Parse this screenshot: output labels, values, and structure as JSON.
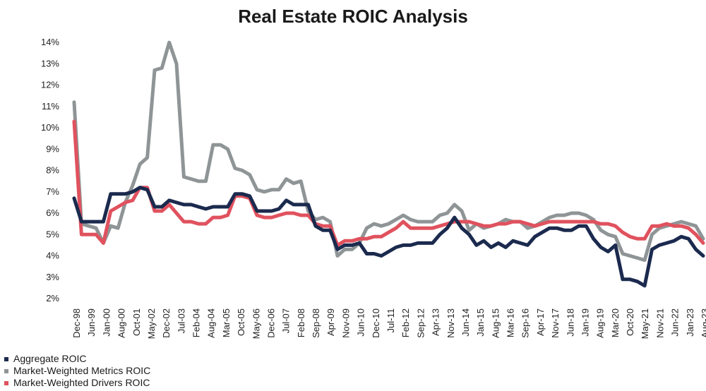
{
  "chart_data": {
    "type": "line",
    "title": "Real Estate ROIC Analysis",
    "xlabel": "",
    "ylabel": "",
    "y_ticks": [
      "2%",
      "3%",
      "4%",
      "5%",
      "6%",
      "7%",
      "8%",
      "9%",
      "10%",
      "11%",
      "12%",
      "13%",
      "14%"
    ],
    "ylim": [
      2,
      14.3
    ],
    "grid": false,
    "legend_position": "bottom-left",
    "x_tick_labels": [
      "Dec-98",
      "Jun-99",
      "Jan-00",
      "Aug-00",
      "Oct-01",
      "May-02",
      "Dec-02",
      "Jul-03",
      "Feb-04",
      "Aug-04",
      "Mar-05",
      "Oct-05",
      "May-06",
      "Dec-06",
      "Jul-07",
      "Feb-08",
      "Sep-08",
      "Apr-09",
      "Nov-09",
      "Jun-10",
      "Dec-10",
      "Jul-11",
      "Feb-12",
      "Sep-12",
      "Apr-13",
      "Nov-13",
      "Jun-14",
      "Jan-15",
      "Aug-15",
      "Mar-16",
      "Sep-16",
      "Apr-17",
      "Nov-17",
      "Jun-18",
      "Jan-19",
      "Aug-19",
      "Mar-20",
      "Oct-20",
      "May-21",
      "Nov-21",
      "Jun-22",
      "Jan-23",
      "Aug-23"
    ],
    "x": [
      "Dec-98",
      "Mar-99",
      "Jun-99",
      "Sep-99",
      "Jan-00",
      "Apr-00",
      "Aug-00",
      "Dec-00",
      "Apr-01",
      "Oct-01",
      "Jan-02",
      "May-02",
      "Aug-02",
      "Oct-02",
      "Dec-02",
      "Mar-03",
      "Jul-03",
      "Nov-03",
      "Feb-04",
      "May-04",
      "Aug-04",
      "Nov-04",
      "Mar-05",
      "Jul-05",
      "Oct-05",
      "Jan-06",
      "May-06",
      "Aug-06",
      "Dec-06",
      "Mar-07",
      "Jul-07",
      "Oct-07",
      "Feb-08",
      "May-08",
      "Sep-08",
      "Dec-08",
      "Apr-09",
      "Jul-09",
      "Nov-09",
      "Mar-10",
      "Jun-10",
      "Sep-10",
      "Dec-10",
      "Apr-11",
      "Jul-11",
      "Nov-11",
      "Feb-12",
      "May-12",
      "Sep-12",
      "Dec-12",
      "Apr-13",
      "Jul-13",
      "Nov-13",
      "Feb-14",
      "Jun-14",
      "Sep-14",
      "Jan-15",
      "Apr-15",
      "Aug-15",
      "Nov-15",
      "Mar-16",
      "Jun-16",
      "Sep-16",
      "Dec-16",
      "Apr-17",
      "Jul-17",
      "Nov-17",
      "Feb-18",
      "Jun-18",
      "Sep-18",
      "Jan-19",
      "Apr-19",
      "Aug-19",
      "Dec-19",
      "Mar-20",
      "Jul-20",
      "Oct-20",
      "Feb-21",
      "May-21",
      "Aug-21",
      "Nov-21",
      "Mar-22",
      "Jun-22",
      "Sep-22",
      "Jan-23",
      "Apr-23",
      "Aug-23"
    ],
    "series": [
      {
        "name": "Aggregate ROIC",
        "color": "#1b2a4e",
        "values": [
          6.7,
          5.6,
          5.6,
          5.6,
          5.6,
          6.9,
          6.9,
          6.9,
          7.0,
          7.2,
          7.1,
          6.3,
          6.3,
          6.6,
          6.5,
          6.4,
          6.4,
          6.3,
          6.2,
          6.3,
          6.3,
          6.3,
          6.9,
          6.9,
          6.8,
          6.1,
          6.1,
          6.1,
          6.2,
          6.6,
          6.4,
          6.4,
          6.4,
          5.4,
          5.2,
          5.2,
          4.3,
          4.5,
          4.5,
          4.6,
          4.1,
          4.1,
          4.0,
          4.2,
          4.4,
          4.5,
          4.5,
          4.6,
          4.6,
          4.6,
          5.0,
          5.3,
          5.8,
          5.3,
          5.0,
          4.5,
          4.7,
          4.4,
          4.6,
          4.4,
          4.7,
          4.6,
          4.5,
          4.9,
          5.1,
          5.3,
          5.3,
          5.2,
          5.2,
          5.4,
          5.4,
          4.8,
          4.4,
          4.2,
          4.5,
          2.9,
          2.9,
          2.8,
          2.6,
          4.3,
          4.5,
          4.6,
          4.7,
          4.9,
          4.8,
          4.3,
          4.0
        ]
      },
      {
        "name": "Market-Weighted Metrics ROIC",
        "color": "#8f9596",
        "values": [
          11.2,
          5.5,
          5.4,
          5.3,
          4.6,
          5.4,
          5.3,
          6.5,
          7.3,
          8.3,
          8.6,
          12.7,
          12.8,
          14.0,
          13.0,
          7.7,
          7.6,
          7.5,
          7.5,
          9.2,
          9.2,
          9.0,
          8.1,
          8.0,
          7.8,
          7.1,
          7.0,
          7.1,
          7.1,
          7.6,
          7.4,
          7.5,
          6.1,
          5.7,
          5.8,
          5.6,
          4.0,
          4.3,
          4.3,
          4.6,
          5.3,
          5.5,
          5.4,
          5.5,
          5.7,
          5.9,
          5.7,
          5.6,
          5.6,
          5.6,
          5.9,
          6.0,
          6.4,
          6.1,
          5.2,
          5.5,
          5.3,
          5.4,
          5.5,
          5.7,
          5.6,
          5.6,
          5.3,
          5.4,
          5.6,
          5.8,
          5.9,
          5.9,
          6.0,
          6.0,
          5.9,
          5.7,
          5.2,
          5.0,
          4.9,
          4.1,
          4.0,
          3.9,
          3.8,
          5.0,
          5.3,
          5.4,
          5.5,
          5.6,
          5.5,
          5.4,
          4.8
        ]
      },
      {
        "name": "Market-Weighted Drivers ROIC",
        "color": "#e0525e",
        "values": [
          10.3,
          5.0,
          5.0,
          5.0,
          4.6,
          6.1,
          6.3,
          6.5,
          6.6,
          7.2,
          7.2,
          6.1,
          6.1,
          6.4,
          6.0,
          5.6,
          5.6,
          5.5,
          5.5,
          5.8,
          5.8,
          5.9,
          6.8,
          6.8,
          6.7,
          5.9,
          5.8,
          5.8,
          5.9,
          6.0,
          6.0,
          5.9,
          5.9,
          5.5,
          5.4,
          5.4,
          4.5,
          4.7,
          4.7,
          4.8,
          4.8,
          4.9,
          4.9,
          5.1,
          5.3,
          5.6,
          5.3,
          5.3,
          5.3,
          5.3,
          5.4,
          5.5,
          5.6,
          5.6,
          5.6,
          5.5,
          5.4,
          5.4,
          5.5,
          5.5,
          5.6,
          5.6,
          5.5,
          5.4,
          5.5,
          5.6,
          5.6,
          5.6,
          5.6,
          5.6,
          5.6,
          5.6,
          5.5,
          5.5,
          5.4,
          5.1,
          4.9,
          4.8,
          4.8,
          5.4,
          5.4,
          5.5,
          5.4,
          5.4,
          5.3,
          5.0,
          4.6
        ]
      }
    ]
  }
}
